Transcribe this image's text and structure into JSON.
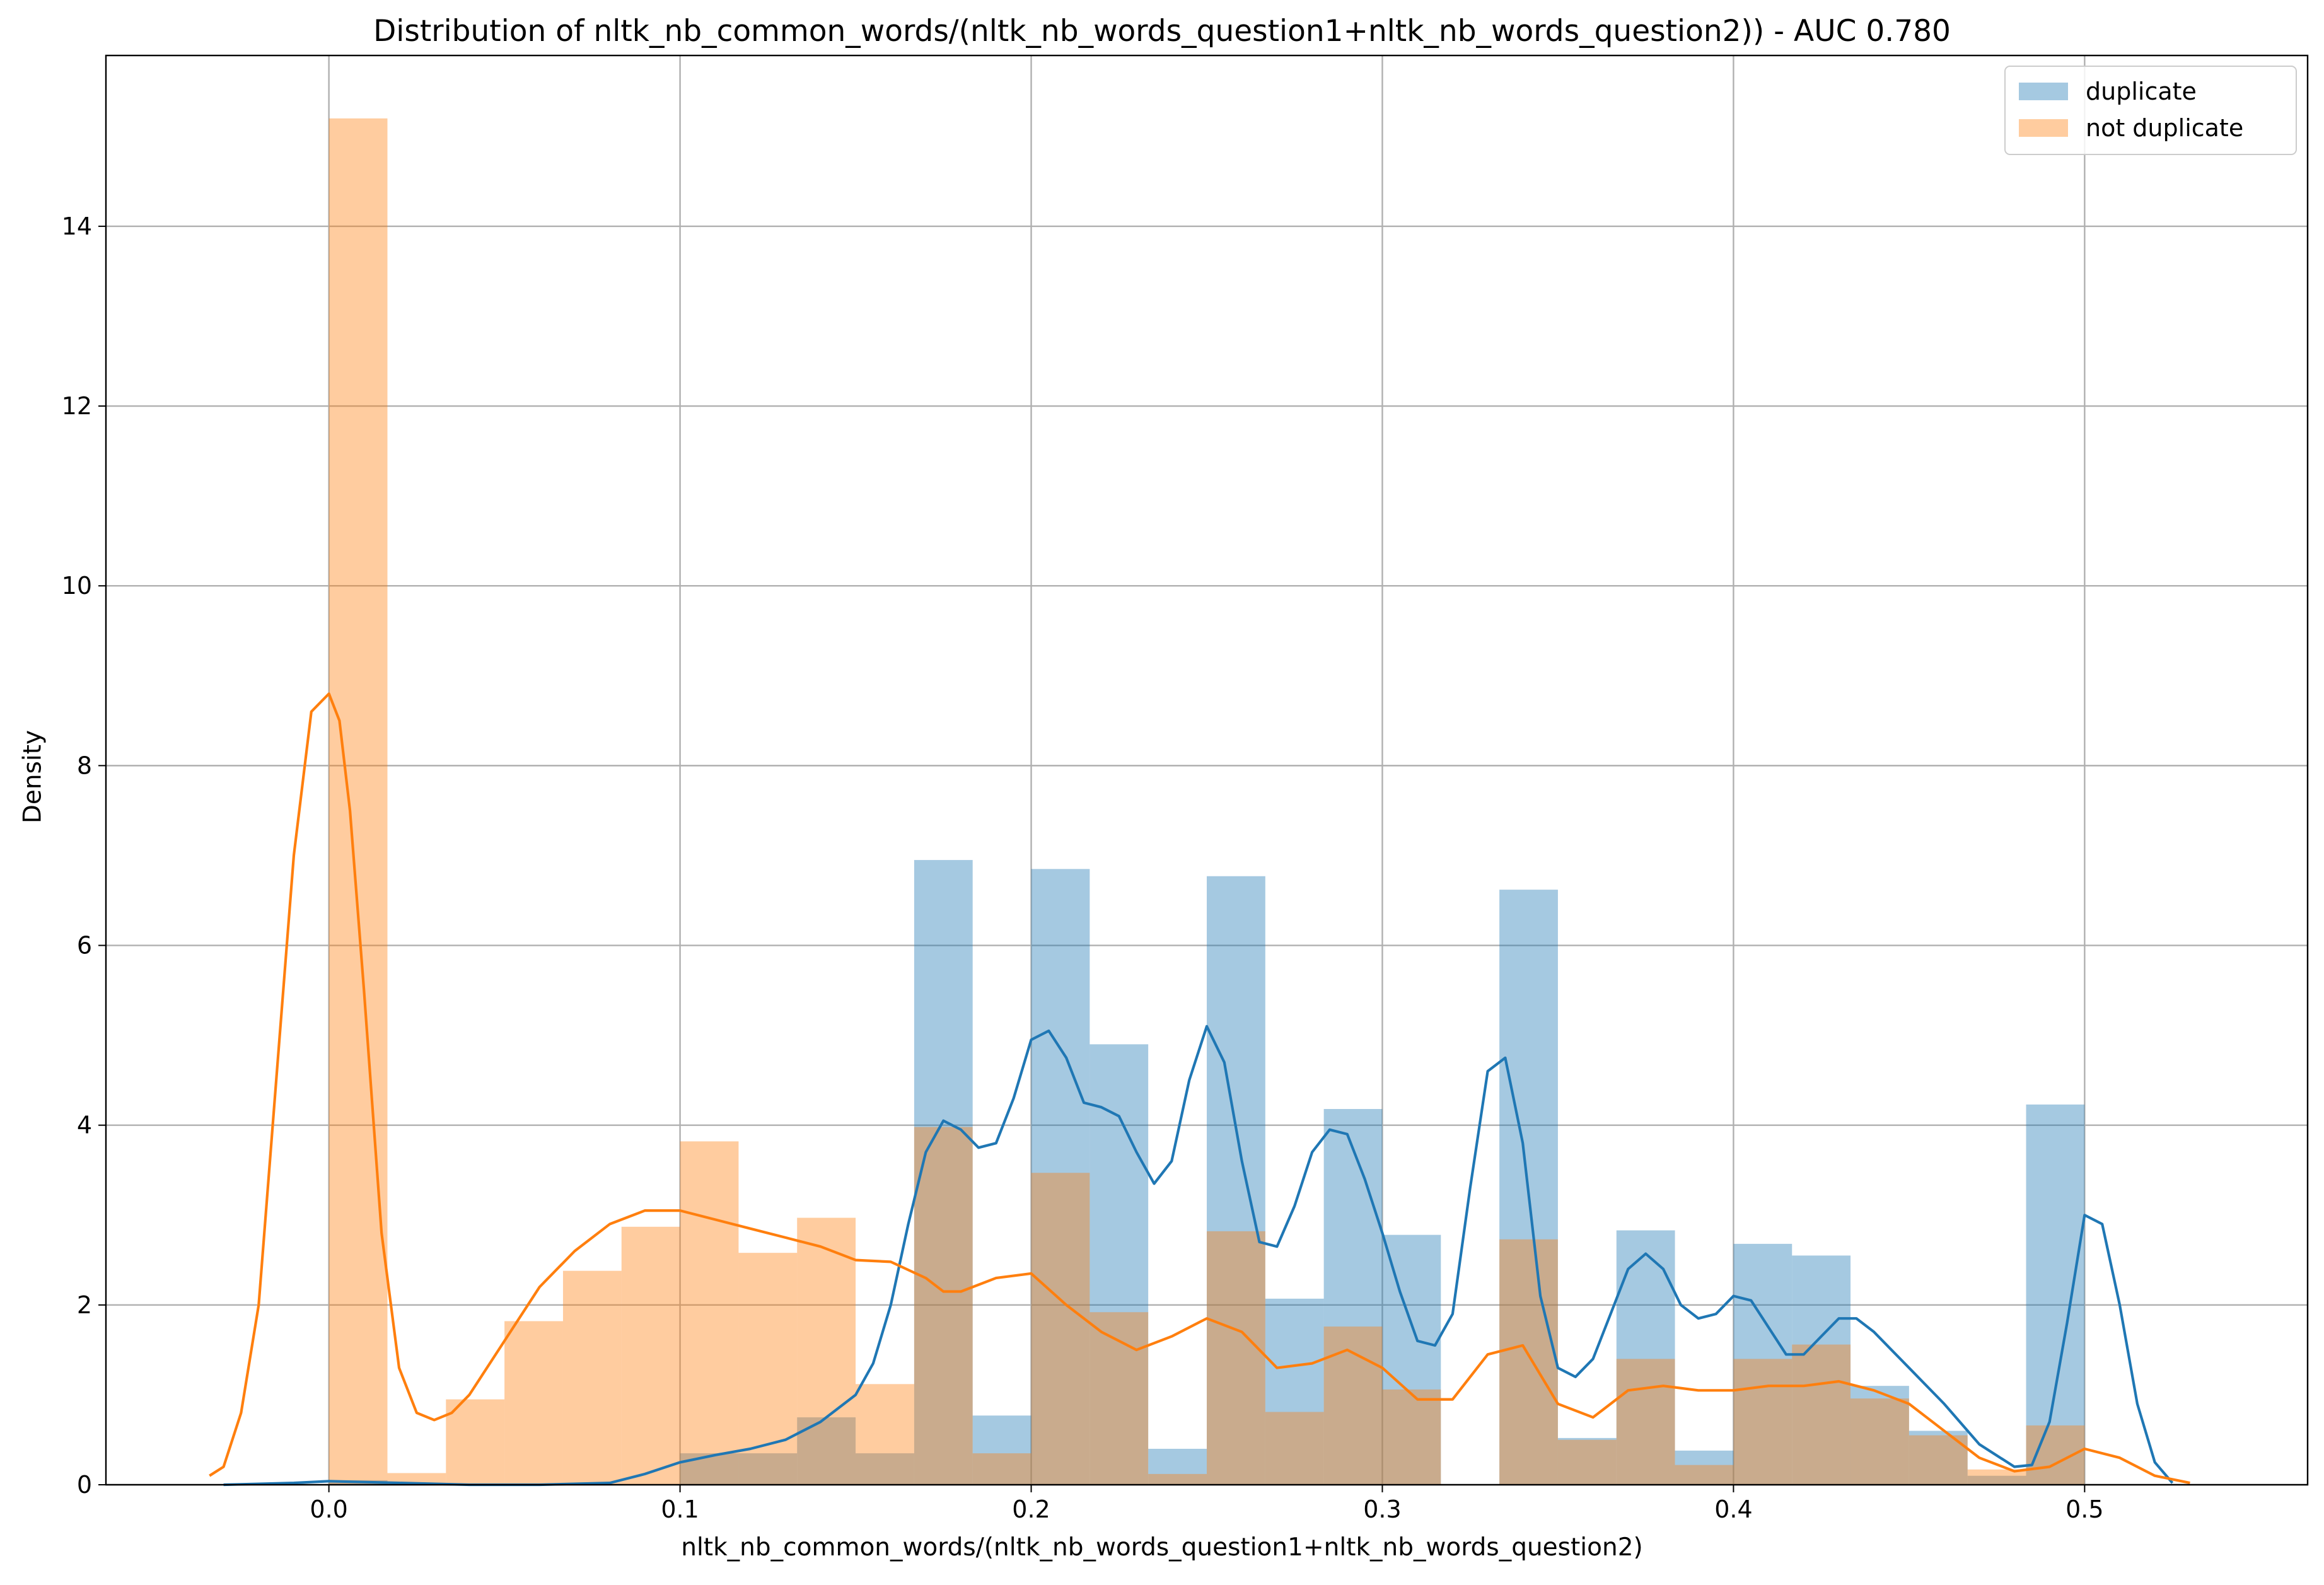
{
  "chart_data": {
    "type": "histogram",
    "title": "Distribution of nltk_nb_common_words/(nltk_nb_words_question1+nltk_nb_words_question2)) - AUC 0.780",
    "xlabel": "nltk_nb_common_words/(nltk_nb_words_question1+nltk_nb_words_question2)",
    "ylabel": "Density",
    "xlim": [
      -0.0635,
      0.5635
    ],
    "ylim": [
      0,
      15.9
    ],
    "xticks": [
      0.0,
      0.1,
      0.2,
      0.3,
      0.4,
      0.5
    ],
    "xtick_labels": [
      "0.0",
      "0.1",
      "0.2",
      "0.3",
      "0.4",
      "0.5"
    ],
    "yticks": [
      0,
      2,
      4,
      6,
      8,
      10,
      12,
      14
    ],
    "ytick_labels": [
      "0",
      "2",
      "4",
      "6",
      "8",
      "10",
      "12",
      "14"
    ],
    "grid": true,
    "legend_position": "top-right",
    "bin_edges": [
      0,
      0.01667,
      0.03333,
      0.05,
      0.06667,
      0.08333,
      0.1,
      0.11667,
      0.13333,
      0.15,
      0.16667,
      0.18333,
      0.2,
      0.21667,
      0.23333,
      0.25,
      0.26667,
      0.28333,
      0.3,
      0.31667,
      0.33333,
      0.35,
      0.36667,
      0.38333,
      0.4,
      0.41667,
      0.43333,
      0.45,
      0.46667,
      0.48333,
      0.5
    ],
    "series": [
      {
        "name": "duplicate",
        "color": "#1f77b4",
        "hist_values": [
          0.05,
          0,
          0,
          0,
          0,
          0,
          0.35,
          0.35,
          0.75,
          0.35,
          6.95,
          0.77,
          6.85,
          4.9,
          0.4,
          6.77,
          2.07,
          4.18,
          2.78,
          0,
          6.62,
          0.52,
          2.83,
          0.38,
          2.68,
          2.55,
          1.1,
          0.6,
          0.1,
          4.23
        ],
        "kde_x": [
          -0.03,
          -0.02,
          -0.01,
          0,
          0.01,
          0.02,
          0.04,
          0.06,
          0.08,
          0.09,
          0.1,
          0.11,
          0.12,
          0.13,
          0.14,
          0.15,
          0.155,
          0.16,
          0.165,
          0.17,
          0.175,
          0.18,
          0.185,
          0.19,
          0.195,
          0.2,
          0.205,
          0.21,
          0.215,
          0.22,
          0.225,
          0.23,
          0.235,
          0.24,
          0.245,
          0.25,
          0.255,
          0.26,
          0.265,
          0.27,
          0.275,
          0.28,
          0.285,
          0.29,
          0.295,
          0.3,
          0.305,
          0.31,
          0.315,
          0.32,
          0.325,
          0.33,
          0.335,
          0.34,
          0.345,
          0.35,
          0.355,
          0.36,
          0.365,
          0.37,
          0.375,
          0.38,
          0.385,
          0.39,
          0.395,
          0.4,
          0.405,
          0.41,
          0.415,
          0.42,
          0.425,
          0.43,
          0.435,
          0.44,
          0.445,
          0.45,
          0.46,
          0.47,
          0.48,
          0.485,
          0.49,
          0.495,
          0.5,
          0.505,
          0.51,
          0.515,
          0.52,
          0.525
        ],
        "kde_y": [
          0,
          0.01,
          0.02,
          0.04,
          0.03,
          0.02,
          0,
          0,
          0.02,
          0.12,
          0.25,
          0.33,
          0.4,
          0.5,
          0.7,
          1.0,
          1.35,
          2.0,
          2.9,
          3.7,
          4.05,
          3.95,
          3.75,
          3.8,
          4.3,
          4.95,
          5.05,
          4.75,
          4.25,
          4.2,
          4.1,
          3.7,
          3.35,
          3.6,
          4.5,
          5.1,
          4.7,
          3.6,
          2.7,
          2.65,
          3.1,
          3.7,
          3.95,
          3.9,
          3.4,
          2.8,
          2.15,
          1.6,
          1.55,
          1.9,
          3.3,
          4.6,
          4.75,
          3.8,
          2.1,
          1.3,
          1.2,
          1.4,
          1.9,
          2.4,
          2.57,
          2.4,
          2.0,
          1.85,
          1.9,
          2.1,
          2.05,
          1.75,
          1.45,
          1.45,
          1.65,
          1.85,
          1.85,
          1.7,
          1.5,
          1.3,
          0.9,
          0.45,
          0.2,
          0.22,
          0.7,
          1.8,
          3.0,
          2.9,
          2.0,
          0.9,
          0.25,
          0.02
        ]
      },
      {
        "name": "not duplicate",
        "color": "#ff7f0e",
        "hist_values": [
          15.2,
          0.13,
          0.95,
          1.82,
          2.38,
          2.87,
          3.82,
          2.58,
          2.97,
          1.12,
          3.98,
          0.35,
          3.47,
          1.92,
          0.12,
          2.82,
          0.81,
          1.76,
          1.06,
          0,
          2.73,
          0.5,
          1.4,
          0.22,
          1.4,
          1.56,
          0.96,
          0.55,
          0.17,
          0.66
        ],
        "kde_x": [
          -0.034,
          -0.03,
          -0.025,
          -0.02,
          -0.015,
          -0.01,
          -0.005,
          0,
          0.003,
          0.006,
          0.01,
          0.015,
          0.02,
          0.025,
          0.03,
          0.035,
          0.04,
          0.05,
          0.06,
          0.07,
          0.08,
          0.09,
          0.1,
          0.11,
          0.12,
          0.13,
          0.14,
          0.15,
          0.16,
          0.17,
          0.175,
          0.18,
          0.19,
          0.2,
          0.21,
          0.22,
          0.23,
          0.24,
          0.25,
          0.26,
          0.27,
          0.28,
          0.29,
          0.3,
          0.31,
          0.32,
          0.33,
          0.34,
          0.35,
          0.36,
          0.37,
          0.38,
          0.39,
          0.4,
          0.41,
          0.42,
          0.43,
          0.44,
          0.45,
          0.46,
          0.47,
          0.48,
          0.49,
          0.5,
          0.51,
          0.52,
          0.53
        ],
        "kde_y": [
          0.1,
          0.2,
          0.8,
          2.0,
          4.5,
          7.0,
          8.6,
          8.8,
          8.5,
          7.5,
          5.5,
          2.8,
          1.3,
          0.8,
          0.72,
          0.8,
          1.0,
          1.6,
          2.2,
          2.6,
          2.9,
          3.05,
          3.05,
          2.95,
          2.85,
          2.75,
          2.65,
          2.5,
          2.48,
          2.3,
          2.15,
          2.15,
          2.3,
          2.35,
          2.0,
          1.7,
          1.5,
          1.65,
          1.85,
          1.7,
          1.3,
          1.35,
          1.5,
          1.3,
          0.95,
          0.95,
          1.45,
          1.55,
          0.9,
          0.75,
          1.05,
          1.1,
          1.05,
          1.05,
          1.1,
          1.1,
          1.15,
          1.05,
          0.9,
          0.6,
          0.3,
          0.15,
          0.2,
          0.4,
          0.3,
          0.1,
          0.02
        ]
      }
    ]
  }
}
